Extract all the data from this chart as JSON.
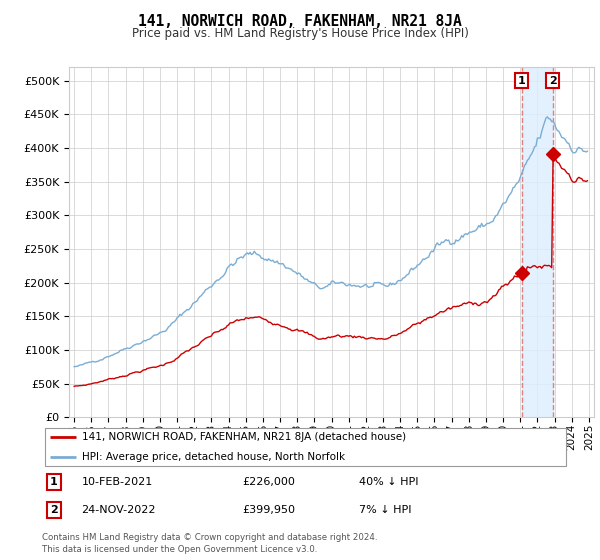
{
  "title": "141, NORWICH ROAD, FAKENHAM, NR21 8JA",
  "subtitle": "Price paid vs. HM Land Registry's House Price Index (HPI)",
  "legend_line1": "141, NORWICH ROAD, FAKENHAM, NR21 8JA (detached house)",
  "legend_line2": "HPI: Average price, detached house, North Norfolk",
  "table_rows": [
    {
      "num": "1",
      "date": "10-FEB-2021",
      "price": "£226,000",
      "pct": "40% ↓ HPI"
    },
    {
      "num": "2",
      "date": "24-NOV-2022",
      "price": "£399,950",
      "pct": "7% ↓ HPI"
    }
  ],
  "footer": "Contains HM Land Registry data © Crown copyright and database right 2024.\nThis data is licensed under the Open Government Licence v3.0.",
  "hpi_color": "#7aadd4",
  "price_color": "#cc0000",
  "vline_color": "#e08080",
  "shade_color": "#ddeeff",
  "marker1_year": 2021.08,
  "marker2_year": 2022.9,
  "marker1_price": 226000,
  "marker2_price": 399950,
  "ylim": [
    0,
    520000
  ],
  "xlim_start": 1994.7,
  "xlim_end": 2025.3,
  "yticks": [
    0,
    50000,
    100000,
    150000,
    200000,
    250000,
    300000,
    350000,
    400000,
    450000,
    500000
  ],
  "xticks": [
    1995,
    1996,
    1997,
    1998,
    1999,
    2000,
    2001,
    2002,
    2003,
    2004,
    2005,
    2006,
    2007,
    2008,
    2009,
    2010,
    2011,
    2012,
    2013,
    2014,
    2015,
    2016,
    2017,
    2018,
    2019,
    2020,
    2021,
    2022,
    2023,
    2024,
    2025
  ]
}
